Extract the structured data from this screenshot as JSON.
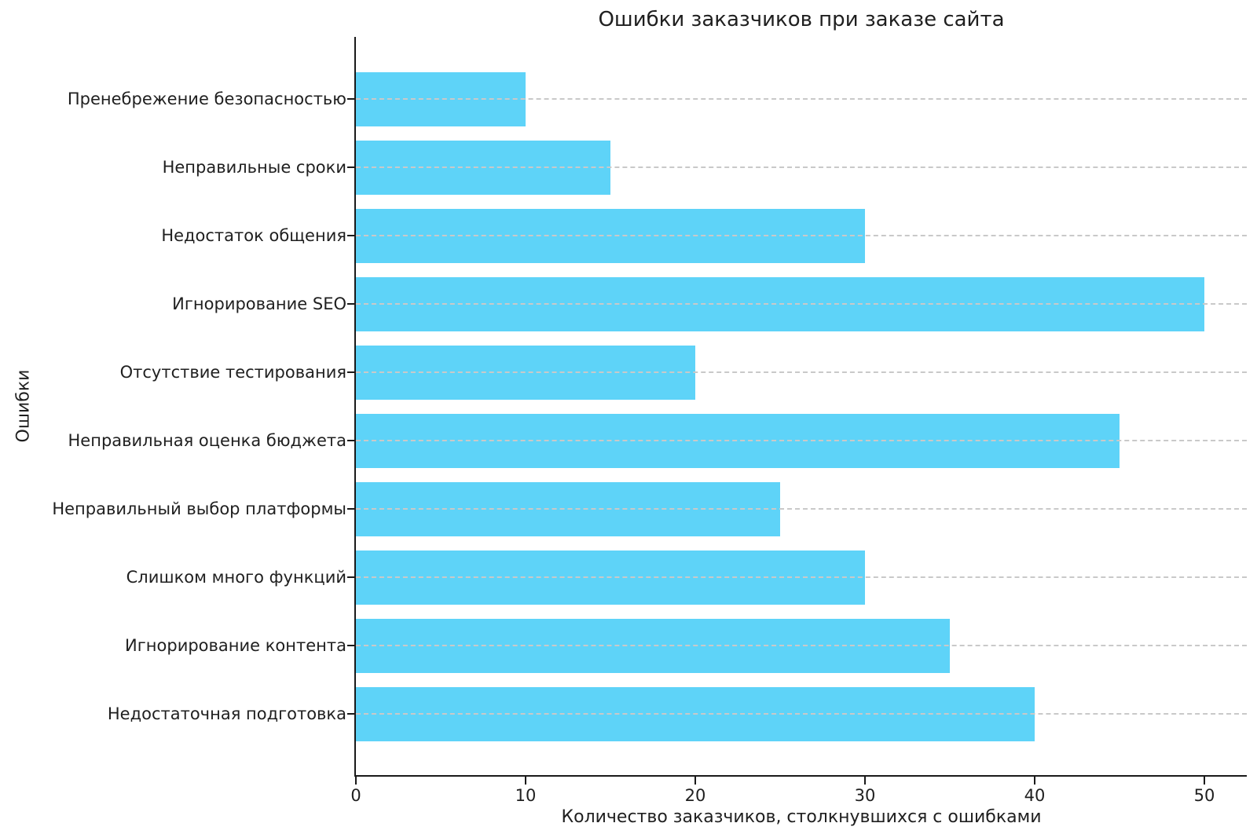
{
  "chart_data": {
    "type": "bar",
    "orientation": "horizontal",
    "title": "Ошибки заказчиков при заказе сайта",
    "xlabel": "Количество заказчиков, столкнувшихся с ошибками",
    "ylabel": "Ошибки",
    "categories": [
      "Пренебрежение безопасностью",
      "Неправильные сроки",
      "Недостаток общения",
      "Игнорирование SEO",
      "Отсутствие тестирования",
      "Неправильная оценка бюджета",
      "Неправильный выбор платформы",
      "Слишком много функций",
      "Игнорирование контента",
      "Недостаточная подготовка"
    ],
    "values": [
      10,
      15,
      30,
      50,
      20,
      45,
      25,
      30,
      35,
      40
    ],
    "xticks": [
      0,
      10,
      20,
      30,
      40,
      50
    ],
    "xlim": [
      0,
      52.5
    ],
    "grid": "horizontal-dashed-over-bars",
    "legend": null,
    "colors": {
      "bar": "#5ED3F8",
      "grid": "#c9c9c9",
      "axis": "#1a1a1a",
      "text": "#1f1f1f",
      "background": "#ffffff"
    }
  }
}
